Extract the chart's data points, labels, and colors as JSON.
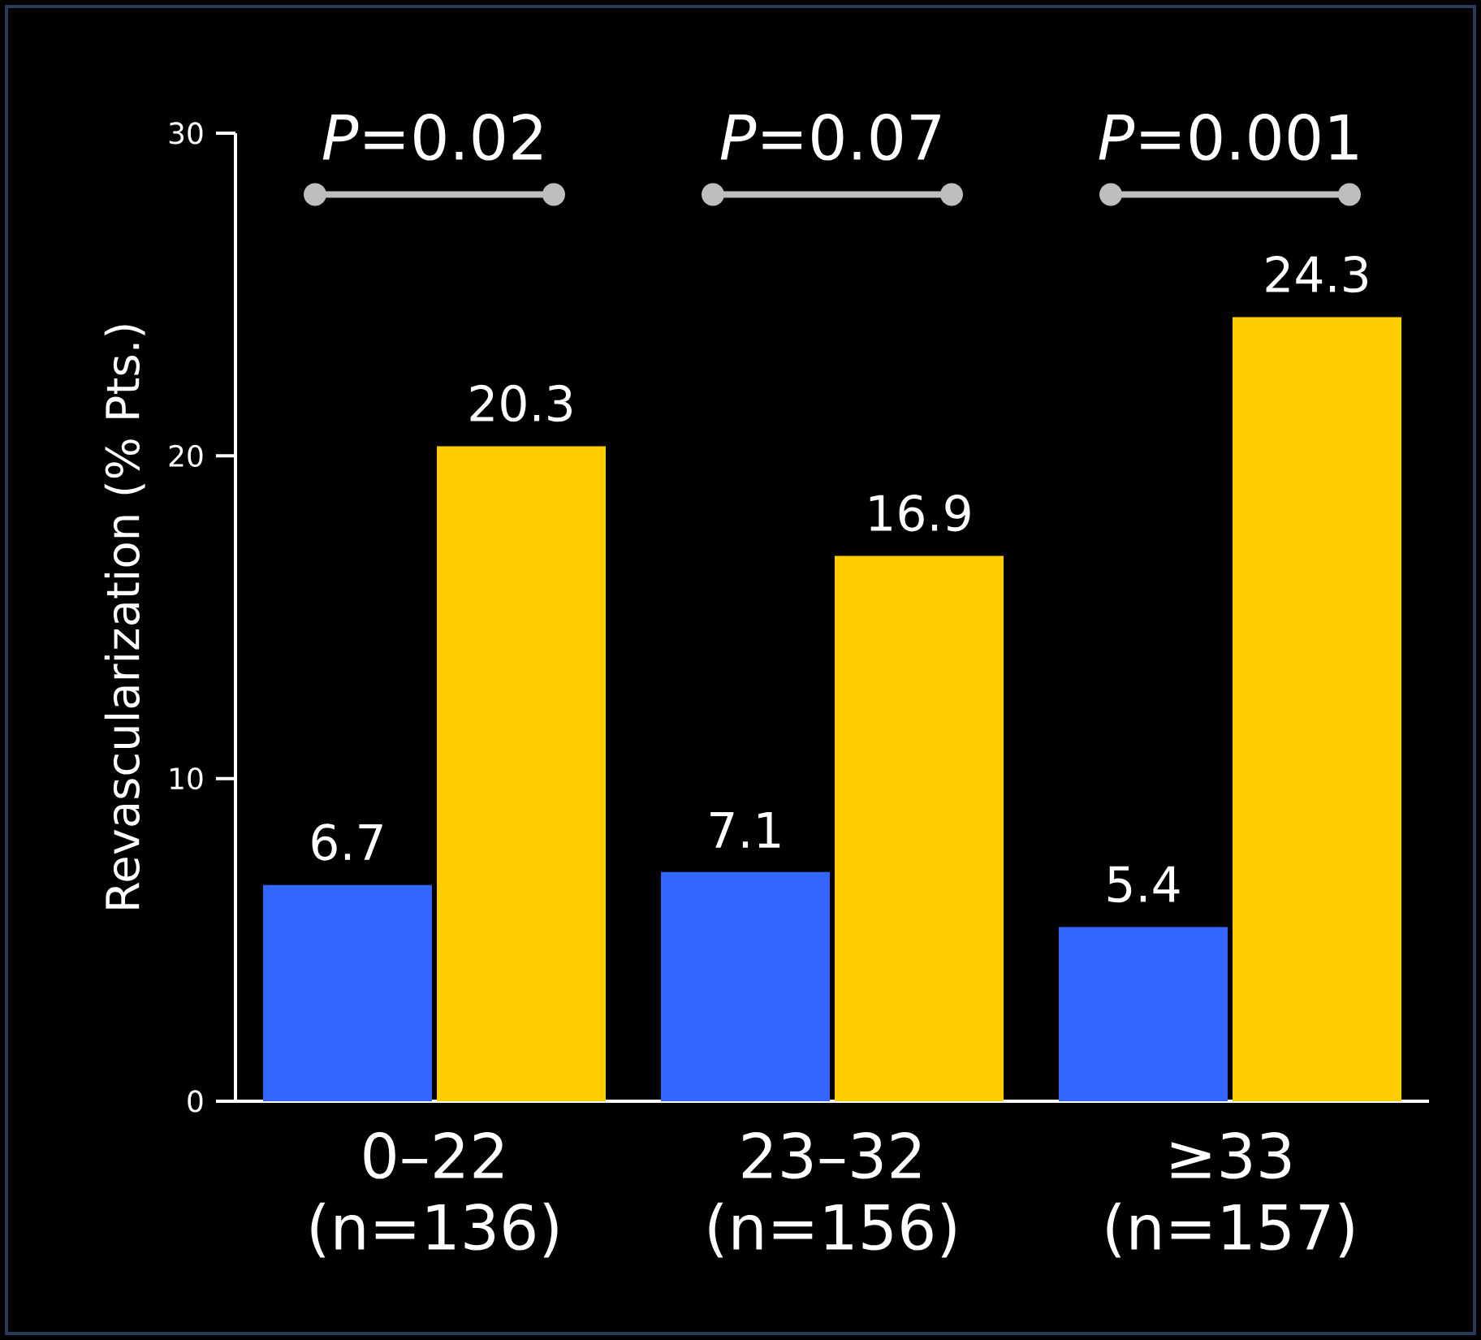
{
  "chart_data": {
    "type": "bar",
    "ylabel": "Revascularization (% Pts.)",
    "categories": [
      "0–22 (n=136)",
      "23–32 (n=156)",
      "≥33 (n=157)"
    ],
    "series": [
      {
        "color": "#3366ff",
        "values": [
          6.7,
          7.1,
          5.4
        ]
      },
      {
        "color": "#ffcc00",
        "values": [
          20.3,
          16.9,
          24.3
        ]
      }
    ],
    "ylim": [
      0,
      30
    ],
    "yticks": [
      0,
      10,
      20,
      30
    ],
    "data_labels": true,
    "grid": false,
    "annotations": [
      "*P*=0.02",
      "*P*=0.07",
      "*P*=0.001"
    ]
  }
}
